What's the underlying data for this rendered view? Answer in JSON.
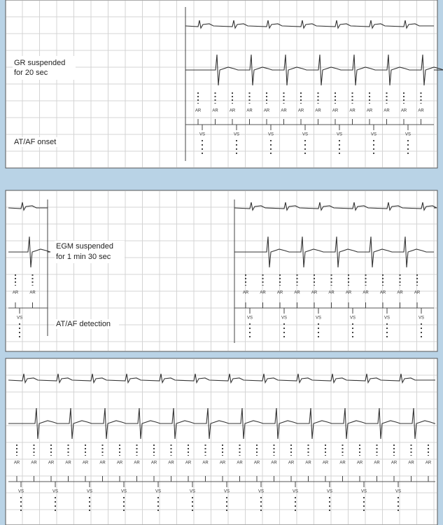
{
  "panels": [
    {
      "labels": [
        "GR suspended",
        "for 20 sec"
      ],
      "event": "AT/AF onset"
    },
    {
      "labels": [
        "EGM suspended",
        "for 1 min 30 sec"
      ],
      "event": "AT/AF detection"
    }
  ],
  "markers": {
    "atrial": "AR",
    "ventricular": "VS"
  }
}
